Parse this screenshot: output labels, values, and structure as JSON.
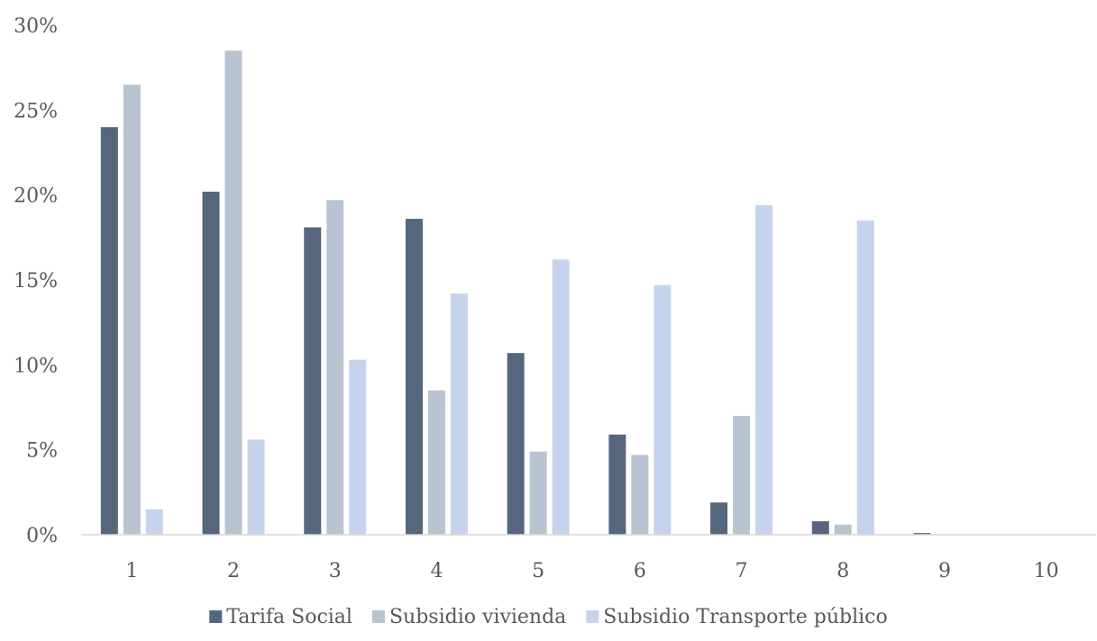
{
  "chart_data": {
    "type": "bar",
    "title": "",
    "xlabel": "",
    "ylabel": "",
    "categories": [
      "1",
      "2",
      "3",
      "4",
      "5",
      "6",
      "7",
      "8",
      "9",
      "10"
    ],
    "ylim": [
      0,
      30
    ],
    "yticks": [
      0,
      5,
      10,
      15,
      20,
      25,
      30
    ],
    "ytick_labels": [
      "0%",
      "5%",
      "10%",
      "15%",
      "20%",
      "25%",
      "30%"
    ],
    "grid": false,
    "legend_position": "bottom",
    "series": [
      {
        "name": "Tarifa Social",
        "color": "#56677d",
        "values": [
          24.0,
          20.2,
          18.1,
          18.6,
          10.7,
          5.9,
          1.9,
          0.8,
          0.1,
          0
        ]
      },
      {
        "name": "Subsidio vivienda",
        "color": "#b8c4d2",
        "values": [
          26.5,
          28.5,
          19.7,
          8.5,
          4.9,
          4.7,
          7.0,
          0.6,
          0,
          0
        ]
      },
      {
        "name": "Subsidio Transporte público",
        "color": "#c5d4ec",
        "values": [
          1.5,
          5.6,
          10.3,
          14.2,
          16.2,
          14.7,
          19.4,
          18.5,
          0,
          0
        ]
      }
    ]
  }
}
